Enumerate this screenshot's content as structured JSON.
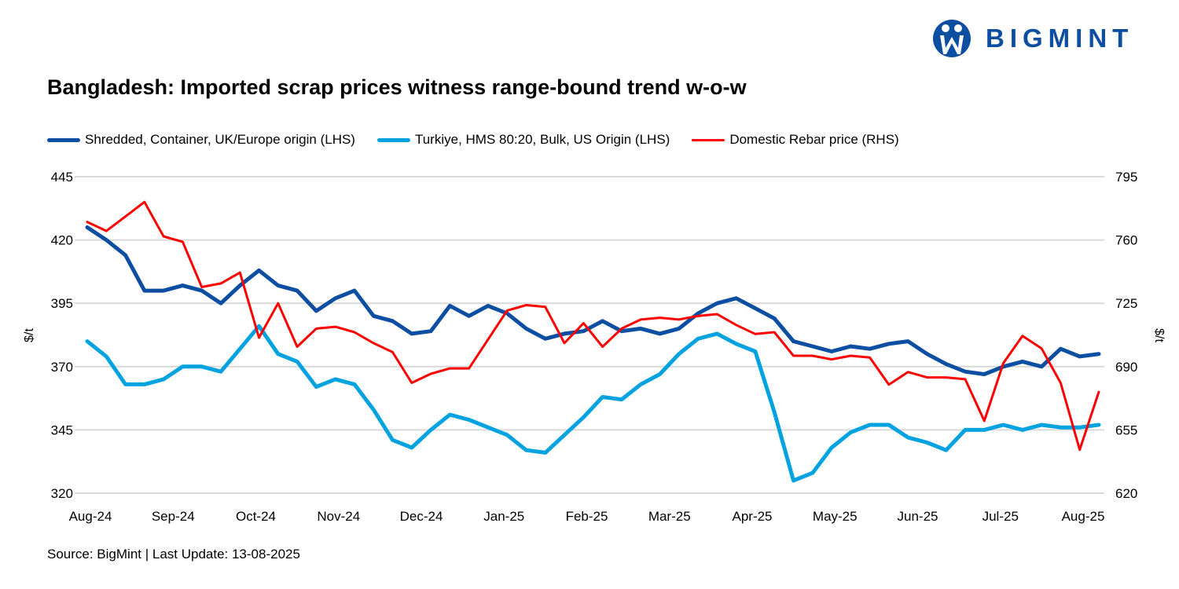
{
  "logo": {
    "text": "BIGMINT",
    "color": "#0b4ea2"
  },
  "title": "Bangladesh: Imported scrap prices witness range-bound trend w-o-w",
  "source": "Source: BigMint | Last Update: 13-08-2025",
  "chart_data": {
    "type": "line",
    "title": "Bangladesh: Imported scrap prices witness range-bound trend w-o-w",
    "x_tick_labels": [
      "Aug-24",
      "Sep-24",
      "Oct-24",
      "Nov-24",
      "Dec-24",
      "Jan-25",
      "Feb-25",
      "Mar-25",
      "Apr-25",
      "May-25",
      "Jun-25",
      "Jul-25",
      "Aug-25"
    ],
    "frequency": "weekly",
    "ylabel_left": "$/t",
    "ylabel_right": "$/t",
    "ylim_left": [
      320,
      445
    ],
    "yticks_left": [
      320,
      345,
      370,
      395,
      420,
      445
    ],
    "ylim_right": [
      620,
      795
    ],
    "yticks_right": [
      620,
      655,
      690,
      725,
      760,
      795
    ],
    "grid": true,
    "legend_position": "top",
    "series": [
      {
        "name": "Shredded, Container, UK/Europe origin (LHS)",
        "axis": "left",
        "color": "#0b4ea2",
        "values": [
          425,
          420,
          414,
          400,
          400,
          402,
          400,
          395,
          402,
          408,
          402,
          400,
          392,
          397,
          400,
          390,
          388,
          383,
          384,
          394,
          390,
          394,
          391,
          385,
          381,
          383,
          384,
          388,
          384,
          385,
          383,
          385,
          391,
          395,
          397,
          393,
          389,
          380,
          378,
          376,
          378,
          377,
          379,
          380,
          375,
          371,
          368,
          367,
          370,
          372,
          370,
          377,
          374,
          375
        ]
      },
      {
        "name": "Turkiye, HMS 80:20, Bulk, US Origin (LHS)",
        "axis": "left",
        "color": "#00a3e0",
        "values": [
          380,
          374,
          363,
          363,
          365,
          370,
          370,
          368,
          377,
          386,
          375,
          372,
          362,
          365,
          363,
          353,
          341,
          338,
          345,
          351,
          349,
          346,
          343,
          337,
          336,
          343,
          350,
          358,
          357,
          363,
          367,
          375,
          381,
          383,
          379,
          376,
          352,
          325,
          328,
          338,
          344,
          347,
          347,
          342,
          340,
          337,
          345,
          345,
          347,
          345,
          347,
          346,
          346,
          347
        ]
      },
      {
        "name": "Domestic Rebar price (RHS)",
        "axis": "right",
        "color": "#ff0000",
        "values": [
          770,
          765,
          773,
          781,
          762,
          759,
          734,
          736,
          742,
          706,
          725,
          701,
          711,
          712,
          709,
          703,
          698,
          681,
          686,
          689,
          689,
          705,
          721,
          724,
          723,
          703,
          714,
          701,
          711,
          716,
          717,
          716,
          718,
          719,
          713,
          708,
          709,
          696,
          696,
          694,
          696,
          695,
          680,
          687,
          684,
          684,
          683,
          660,
          692,
          707,
          700,
          681,
          644,
          676
        ]
      }
    ]
  }
}
